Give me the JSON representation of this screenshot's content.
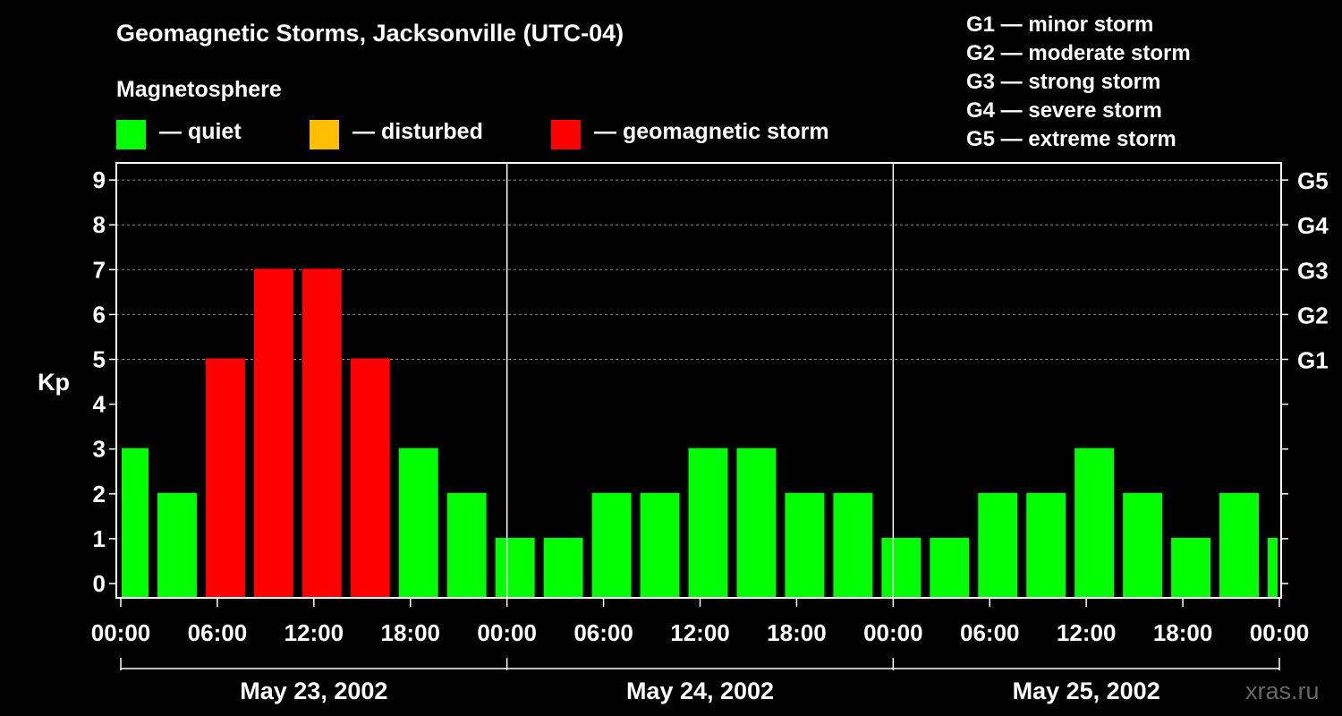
{
  "title": "Geomagnetic Storms, Jacksonville (UTC-04)",
  "subtitle": "Magnetosphere",
  "legend": [
    {
      "label": "— quiet",
      "color": "#00ff00"
    },
    {
      "label": "— disturbed",
      "color": "#ffbf00"
    },
    {
      "label": "— geomagnetic storm",
      "color": "#ff0000"
    }
  ],
  "g_levels": [
    "G1 — minor storm",
    "G2 — moderate storm",
    "G3 — strong storm",
    "G4 — severe storm",
    "G5 — extreme storm"
  ],
  "watermark": "xras.ru",
  "chart_data": {
    "type": "bar",
    "ylabel": "Kp",
    "ylim": [
      0,
      9
    ],
    "y_ticks": [
      0,
      1,
      2,
      3,
      4,
      5,
      6,
      7,
      8,
      9
    ],
    "right_ticks": [
      {
        "kp": 5,
        "label": "G1"
      },
      {
        "kp": 6,
        "label": "G2"
      },
      {
        "kp": 7,
        "label": "G3"
      },
      {
        "kp": 8,
        "label": "G4"
      },
      {
        "kp": 9,
        "label": "G5"
      }
    ],
    "x_tick_labels": [
      "00:00",
      "06:00",
      "12:00",
      "18:00",
      "00:00",
      "06:00",
      "12:00",
      "18:00",
      "00:00",
      "06:00",
      "12:00",
      "18:00",
      "00:00"
    ],
    "days": [
      "May 23, 2002",
      "May 24, 2002",
      "May 25, 2002"
    ],
    "interval_hours": 3,
    "start_hour": -1,
    "values": [
      3,
      2,
      5,
      7,
      7,
      5,
      3,
      2,
      1,
      1,
      2,
      2,
      3,
      3,
      2,
      2,
      1,
      1,
      2,
      2,
      3,
      2,
      1,
      2,
      1
    ],
    "colors": {
      "quiet": "#00ff00",
      "disturbed": "#ffbf00",
      "storm": "#ff0000"
    },
    "grid": true
  }
}
